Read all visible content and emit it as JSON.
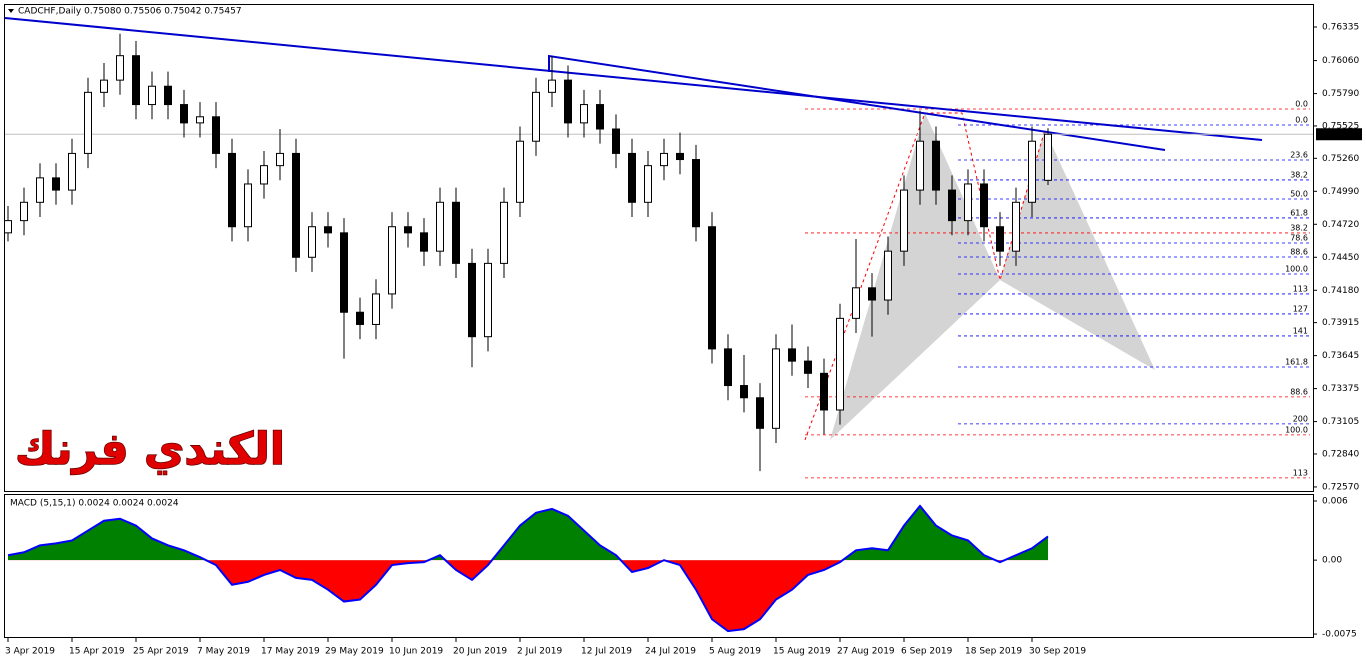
{
  "chart_data": [
    {
      "type": "candlestick",
      "title": "CADCHF,Daily  0.75080 0.75506 0.75042 0.75457",
      "open": [
        0.7465,
        0.7475,
        0.749,
        0.751,
        0.75,
        0.753,
        0.758,
        0.759,
        0.761,
        0.757,
        0.7585,
        0.757,
        0.7555,
        0.756,
        0.753,
        0.747,
        0.7505,
        0.752,
        0.753,
        0.7445,
        0.747,
        0.7465,
        0.74,
        0.739,
        0.7415,
        0.747,
        0.7465,
        0.745,
        0.749,
        0.744,
        0.738,
        0.744,
        0.749,
        0.754,
        0.758,
        0.759,
        0.7555,
        0.757,
        0.755,
        0.753,
        0.749,
        0.752,
        0.753,
        0.7525,
        0.747,
        0.737,
        0.734,
        0.733,
        0.7305,
        0.737,
        0.736,
        0.735,
        0.732,
        0.7395,
        0.742,
        0.741,
        0.745,
        0.75,
        0.754,
        0.75,
        0.7475,
        0.7505,
        0.747,
        0.745,
        0.749,
        0.7508
      ],
      "high": [
        0.7487,
        0.7502,
        0.7522,
        0.7522,
        0.7542,
        0.7592,
        0.7604,
        0.7628,
        0.7622,
        0.7597,
        0.7597,
        0.7582,
        0.7572,
        0.7572,
        0.7542,
        0.7517,
        0.7532,
        0.755,
        0.7542,
        0.7482,
        0.7482,
        0.7477,
        0.7412,
        0.7427,
        0.7482,
        0.7482,
        0.7477,
        0.7502,
        0.7502,
        0.7452,
        0.7452,
        0.7502,
        0.7552,
        0.7592,
        0.761,
        0.7602,
        0.7582,
        0.7582,
        0.7562,
        0.7542,
        0.7532,
        0.7542,
        0.7547,
        0.7537,
        0.7482,
        0.7382,
        0.7365,
        0.7342,
        0.7382,
        0.739,
        0.7372,
        0.7362,
        0.7407,
        0.746,
        0.7432,
        0.7462,
        0.7512,
        0.7565,
        0.7552,
        0.7512,
        0.7517,
        0.7517,
        0.7482,
        0.7502,
        0.7552,
        0.75506
      ],
      "low": [
        0.7458,
        0.7463,
        0.7478,
        0.7488,
        0.7488,
        0.7518,
        0.7568,
        0.7578,
        0.7558,
        0.7558,
        0.7558,
        0.7543,
        0.7543,
        0.7518,
        0.7458,
        0.7458,
        0.7493,
        0.7508,
        0.7433,
        0.7433,
        0.7453,
        0.7362,
        0.7378,
        0.7378,
        0.7403,
        0.7453,
        0.7438,
        0.7438,
        0.7428,
        0.7355,
        0.7368,
        0.7428,
        0.7478,
        0.7528,
        0.7568,
        0.7543,
        0.7543,
        0.7538,
        0.7518,
        0.7478,
        0.7478,
        0.7508,
        0.7513,
        0.7458,
        0.7358,
        0.7328,
        0.7318,
        0.727,
        0.7293,
        0.7348,
        0.7338,
        0.73,
        0.7308,
        0.7383,
        0.738,
        0.7398,
        0.7438,
        0.7488,
        0.7488,
        0.7463,
        0.7463,
        0.7458,
        0.7438,
        0.7438,
        0.7478,
        0.75042
      ],
      "close": [
        0.7475,
        0.749,
        0.751,
        0.75,
        0.753,
        0.758,
        0.759,
        0.761,
        0.757,
        0.7585,
        0.757,
        0.7555,
        0.756,
        0.753,
        0.747,
        0.7505,
        0.752,
        0.753,
        0.7445,
        0.747,
        0.7465,
        0.74,
        0.739,
        0.7415,
        0.747,
        0.7465,
        0.745,
        0.749,
        0.744,
        0.738,
        0.744,
        0.749,
        0.754,
        0.758,
        0.759,
        0.7555,
        0.757,
        0.755,
        0.753,
        0.749,
        0.752,
        0.753,
        0.7525,
        0.747,
        0.737,
        0.734,
        0.733,
        0.7305,
        0.737,
        0.736,
        0.735,
        0.732,
        0.7395,
        0.742,
        0.741,
        0.745,
        0.75,
        0.754,
        0.75,
        0.7475,
        0.7505,
        0.747,
        0.745,
        0.749,
        0.754,
        0.75457
      ],
      "xticks": [
        {
          "value": 0,
          "label": "3 Apr 2019"
        },
        {
          "value": 4,
          "label": "15 Apr 2019"
        },
        {
          "value": 8,
          "label": "25 Apr 2019"
        },
        {
          "value": 12,
          "label": "7 May 2019"
        },
        {
          "value": 16,
          "label": "17 May 2019"
        },
        {
          "value": 20,
          "label": "29 May 2019"
        },
        {
          "value": 24,
          "label": "10 Jun 2019"
        },
        {
          "value": 28,
          "label": "20 Jun 2019"
        },
        {
          "value": 32,
          "label": "2 Jul 2019"
        },
        {
          "value": 36,
          "label": "12 Jul 2019"
        },
        {
          "value": 40,
          "label": "24 Jul 2019"
        },
        {
          "value": 44,
          "label": "5 Aug 2019"
        },
        {
          "value": 48,
          "label": "15 Aug 2019"
        },
        {
          "value": 52,
          "label": "27 Aug 2019"
        },
        {
          "value": 56,
          "label": "6 Sep 2019"
        },
        {
          "value": 60,
          "label": "18 Sep 2019"
        },
        {
          "value": 64,
          "label": "30 Sep 2019"
        }
      ],
      "ylim": [
        0.72545,
        0.76515
      ],
      "yticks": [
        {
          "value": 0.76335,
          "label": "0.76335"
        },
        {
          "value": 0.7606,
          "label": "0.76060"
        },
        {
          "value": 0.7579,
          "label": "0.75790"
        },
        {
          "value": 0.75525,
          "label": "0.75525"
        },
        {
          "value": 0.7526,
          "label": "0.75260"
        },
        {
          "value": 0.7499,
          "label": "0.74990"
        },
        {
          "value": 0.7472,
          "label": "0.74720"
        },
        {
          "value": 0.7445,
          "label": "0.74450"
        },
        {
          "value": 0.7418,
          "label": "0.74180"
        },
        {
          "value": 0.73915,
          "label": "0.73915"
        },
        {
          "value": 0.73645,
          "label": "0.73645"
        },
        {
          "value": 0.73375,
          "label": "0.73375"
        },
        {
          "value": 0.73105,
          "label": "0.73105"
        },
        {
          "value": 0.7284,
          "label": "0.72840"
        },
        {
          "value": 0.7257,
          "label": "0.72570"
        }
      ],
      "annotations": [
        {
          "label": "0.0",
          "value": 0.75664,
          "color": "#ff0000"
        },
        {
          "label": "0.0",
          "value": 0.75533,
          "color": "#0000ff"
        },
        {
          "label": "23.6",
          "value": 0.75246,
          "color": "#0000ff"
        },
        {
          "label": "38.2",
          "value": 0.75083,
          "color": "#0000ff"
        },
        {
          "label": "50.0",
          "value": 0.74927,
          "color": "#0000ff"
        },
        {
          "label": "61.8",
          "value": 0.74772,
          "color": "#0000ff"
        },
        {
          "label": "38.2",
          "value": 0.74649,
          "color": "#ff0000"
        },
        {
          "label": "78.6",
          "value": 0.74567,
          "color": "#0000ff"
        },
        {
          "label": "88.6",
          "value": 0.74452,
          "color": "#0000ff"
        },
        {
          "label": "100.0",
          "value": 0.74313,
          "color": "#0000ff"
        },
        {
          "label": "113",
          "value": 0.7415,
          "color": "#0000ff"
        },
        {
          "label": "127",
          "value": 0.73986,
          "color": "#0000ff"
        },
        {
          "label": "141",
          "value": 0.73806,
          "color": "#0000ff"
        },
        {
          "label": "161.8",
          "value": 0.73552,
          "color": "#0000ff"
        },
        {
          "label": "88.6",
          "value": 0.73307,
          "color": "#ff0000"
        },
        {
          "label": "200",
          "value": 0.73086,
          "color": "#0000ff"
        },
        {
          "label": "100.0",
          "value": 0.72996,
          "color": "#ff0000"
        },
        {
          "label": "113",
          "value": 0.72644,
          "color": "#ff0000"
        }
      ],
      "watermark": "الكندي فرنك"
    },
    {
      "type": "area",
      "title": "MACD (5,15,1) 0.0024 0.0024 0.0024",
      "values": [
        0.0005,
        0.0008,
        0.0015,
        0.0017,
        0.002,
        0.003,
        0.004,
        0.0042,
        0.0035,
        0.0022,
        0.0015,
        0.001,
        0.0003,
        -0.0005,
        -0.0025,
        -0.0022,
        -0.0015,
        -0.001,
        -0.0018,
        -0.002,
        -0.003,
        -0.0042,
        -0.004,
        -0.0025,
        -0.0005,
        -0.0003,
        -0.0002,
        0.0005,
        -0.001,
        -0.002,
        -0.0005,
        0.0015,
        0.0035,
        0.0048,
        0.0052,
        0.0045,
        0.003,
        0.0015,
        0.0005,
        -0.0012,
        -0.0008,
        0,
        -0.0005,
        -0.003,
        -0.006,
        -0.0072,
        -0.007,
        -0.006,
        -0.004,
        -0.003,
        -0.0015,
        -0.001,
        -0.0002,
        0.001,
        0.0012,
        0.001,
        0.0035,
        0.0055,
        0.0035,
        0.0025,
        0.002,
        0.0005,
        -0.0002,
        0.0005,
        0.0012,
        0.0024
      ],
      "positive_color": "#008000",
      "negative_color": "#ff0000",
      "line_color": "#0000ff",
      "ylim": [
        -0.0078,
        0.00661
      ],
      "yticks": [
        0.006,
        {
          "value": 0,
          "label": "0.00"
        },
        -0.0075
      ]
    }
  ]
}
